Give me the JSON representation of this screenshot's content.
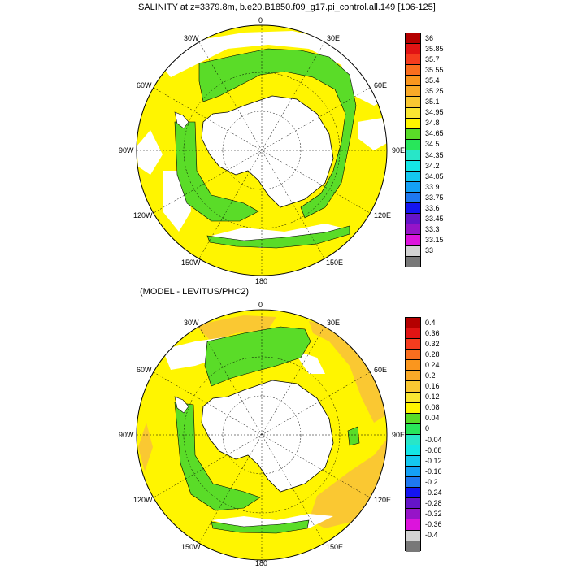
{
  "panel_top": {
    "title": "SALINITY at z=3379.8m, b.e20.B1850.f09_g17.pi_control.all.149 [106-125]",
    "lon_labels": {
      "n": "0",
      "nne": "30E",
      "ene": "60E",
      "e": "90E",
      "ese": "120E",
      "sse": "150E",
      "s": "180",
      "ssw": "150W",
      "wsw": "120W",
      "w": "90W",
      "wnw": "60W",
      "nnw": "30W"
    },
    "colorbar": {
      "labels": [
        "36",
        "35.85",
        "35.7",
        "35.55",
        "35.4",
        "35.25",
        "35.1",
        "34.95",
        "34.8",
        "34.65",
        "34.5",
        "34.35",
        "34.2",
        "34.05",
        "33.9",
        "33.75",
        "33.6",
        "33.45",
        "33.3",
        "33.15",
        "33"
      ],
      "colors": [
        "#b40000",
        "#e11414",
        "#f53c1e",
        "#fa6e1e",
        "#fa961e",
        "#faaa28",
        "#fac832",
        "#fae632",
        "#fff500",
        "#5adc28",
        "#28e65a",
        "#28e6c8",
        "#14e6e6",
        "#14c8f0",
        "#14a0f5",
        "#1e78f0",
        "#1414f0",
        "#6414c8",
        "#9614c8",
        "#dc14dc",
        "#d2d2d2",
        "#787878"
      ]
    }
  },
  "panel_bottom": {
    "title": "(MODEL - LEVITUS/PHC2)",
    "lon_labels": {
      "n": "0",
      "nne": "30E",
      "ene": "60E",
      "e": "90E",
      "ese": "120E",
      "sse": "150E",
      "s": "180",
      "ssw": "150W",
      "wsw": "120W",
      "w": "90W",
      "wnw": "60W",
      "nnw": "30W"
    },
    "colorbar": {
      "labels": [
        "0.4",
        "0.36",
        "0.32",
        "0.28",
        "0.24",
        "0.2",
        "0.16",
        "0.12",
        "0.08",
        "0.04",
        "0",
        "-0.04",
        "-0.08",
        "-0.12",
        "-0.16",
        "-0.2",
        "-0.24",
        "-0.28",
        "-0.32",
        "-0.36",
        "-0.4"
      ],
      "colors": [
        "#b40000",
        "#e11414",
        "#f53c1e",
        "#fa6e1e",
        "#fa961e",
        "#faaa28",
        "#fac832",
        "#fae632",
        "#fff500",
        "#5adc28",
        "#28e65a",
        "#28e6c8",
        "#14e6e6",
        "#14c8f0",
        "#14a0f5",
        "#1e78f0",
        "#1414f0",
        "#6414c8",
        "#9614c8",
        "#dc14dc",
        "#d2d2d2",
        "#787878"
      ]
    }
  }
}
